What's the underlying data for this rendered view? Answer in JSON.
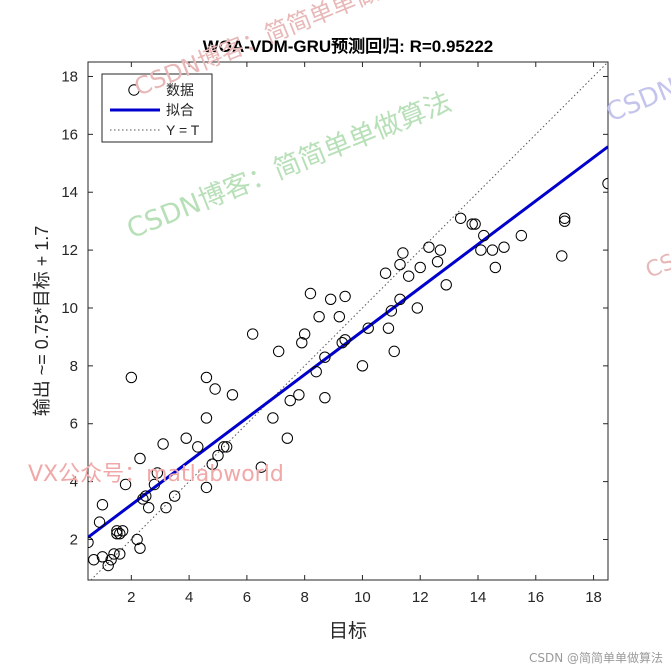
{
  "chart_data": {
    "type": "scatter",
    "title": "WOA-VDM-GRU预测回归: R=0.95222",
    "xlabel": "目标",
    "ylabel": "输出 ~= 0.75*目标 + 1.7",
    "xlim": [
      0.5,
      18.5
    ],
    "ylim": [
      0.6,
      18.5
    ],
    "xticks": [
      2,
      4,
      6,
      8,
      10,
      12,
      14,
      16,
      18
    ],
    "yticks": [
      2,
      4,
      6,
      8,
      10,
      12,
      14,
      16,
      18
    ],
    "grid": false,
    "legend_position": "top-left",
    "fit": {
      "slope": 0.75,
      "intercept": 1.7
    },
    "series": [
      {
        "name": "数据",
        "marker": "circle",
        "color": "#000000",
        "points": [
          [
            0.5,
            1.9
          ],
          [
            0.7,
            1.3
          ],
          [
            0.9,
            2.6
          ],
          [
            1.0,
            3.2
          ],
          [
            1.0,
            1.4
          ],
          [
            1.2,
            1.1
          ],
          [
            1.3,
            1.3
          ],
          [
            1.4,
            1.5
          ],
          [
            1.5,
            2.2
          ],
          [
            1.5,
            2.3
          ],
          [
            1.6,
            1.5
          ],
          [
            1.6,
            2.2
          ],
          [
            1.7,
            2.3
          ],
          [
            1.8,
            3.9
          ],
          [
            2.0,
            7.6
          ],
          [
            2.2,
            2.0
          ],
          [
            2.3,
            1.7
          ],
          [
            2.3,
            4.8
          ],
          [
            2.4,
            3.4
          ],
          [
            2.5,
            3.5
          ],
          [
            2.6,
            3.1
          ],
          [
            2.8,
            3.9
          ],
          [
            2.9,
            4.3
          ],
          [
            3.1,
            5.3
          ],
          [
            3.2,
            3.1
          ],
          [
            3.5,
            3.5
          ],
          [
            3.9,
            5.5
          ],
          [
            4.3,
            5.2
          ],
          [
            4.6,
            3.8
          ],
          [
            4.6,
            6.2
          ],
          [
            4.6,
            7.6
          ],
          [
            4.8,
            4.6
          ],
          [
            4.9,
            7.2
          ],
          [
            5.0,
            4.9
          ],
          [
            5.2,
            5.2
          ],
          [
            5.3,
            5.2
          ],
          [
            5.5,
            7.0
          ],
          [
            6.2,
            9.1
          ],
          [
            6.5,
            4.5
          ],
          [
            6.9,
            6.2
          ],
          [
            7.1,
            8.5
          ],
          [
            7.4,
            5.5
          ],
          [
            7.5,
            6.8
          ],
          [
            7.8,
            7.0
          ],
          [
            7.9,
            8.8
          ],
          [
            8.0,
            9.1
          ],
          [
            8.2,
            10.5
          ],
          [
            8.4,
            7.8
          ],
          [
            8.5,
            9.7
          ],
          [
            8.7,
            6.9
          ],
          [
            8.7,
            8.3
          ],
          [
            8.9,
            10.3
          ],
          [
            9.2,
            9.7
          ],
          [
            9.3,
            8.8
          ],
          [
            9.4,
            8.9
          ],
          [
            9.4,
            10.4
          ],
          [
            10.0,
            8.0
          ],
          [
            10.2,
            9.3
          ],
          [
            10.8,
            11.2
          ],
          [
            10.9,
            9.3
          ],
          [
            11.0,
            9.9
          ],
          [
            11.1,
            8.5
          ],
          [
            11.3,
            10.3
          ],
          [
            11.3,
            11.5
          ],
          [
            11.4,
            11.9
          ],
          [
            11.6,
            11.1
          ],
          [
            11.9,
            10.0
          ],
          [
            12.0,
            11.4
          ],
          [
            12.3,
            12.1
          ],
          [
            12.6,
            11.6
          ],
          [
            12.7,
            12.0
          ],
          [
            12.9,
            10.8
          ],
          [
            13.4,
            13.1
          ],
          [
            13.8,
            12.9
          ],
          [
            13.9,
            12.9
          ],
          [
            14.1,
            12.0
          ],
          [
            14.2,
            12.5
          ],
          [
            14.5,
            12.0
          ],
          [
            14.6,
            11.4
          ],
          [
            14.9,
            12.1
          ],
          [
            15.5,
            12.5
          ],
          [
            16.9,
            11.8
          ],
          [
            17.0,
            13.1
          ],
          [
            17.0,
            13.0
          ],
          [
            18.5,
            14.3
          ]
        ]
      },
      {
        "name": "拟合",
        "type": "line",
        "color": "#0000cc"
      },
      {
        "name": "Y = T",
        "type": "line",
        "style": "dotted",
        "color": "#555555"
      }
    ]
  },
  "watermarks": [
    {
      "text": "CSDN博客：简简单单做算法",
      "color": "#b8e0b8",
      "angle": -22
    },
    {
      "text": "CSDN博客：简简单单做算法",
      "color": "#e8b8b8",
      "angle": -22
    },
    {
      "text": "CSDN博客：简简单单做算法",
      "color": "#c4c4ec",
      "angle": -22
    },
    {
      "text": "VX公众号：matlabworld",
      "color": "#f0a8a8",
      "angle": 0
    },
    {
      "text": "CSDN博客：简简单单做算法",
      "color": "#e8b8b8",
      "angle": -22
    }
  ],
  "footer": "CSDN @简简单单做算法"
}
